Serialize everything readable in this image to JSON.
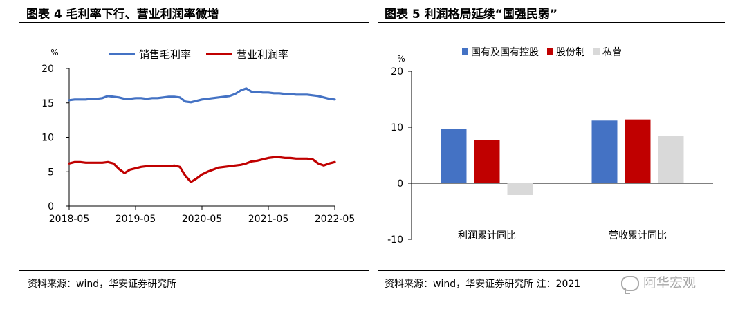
{
  "left_panel": {
    "title": "图表 4 毛利率下行、营业利润率微增",
    "source": "资料来源：wind，华安证券研究所"
  },
  "right_panel": {
    "title": "图表 5 利润格局延续“国强民弱”",
    "source": "资料来源：wind，华安证券研究所 注：2021"
  },
  "watermark": {
    "text": "阿华宏观"
  },
  "chart_data": [
    {
      "type": "line",
      "title": "",
      "unit_label": "%",
      "xlabel": "",
      "ylabel": "",
      "ylim": [
        0,
        20
      ],
      "yticks": [
        0,
        5,
        10,
        15,
        20
      ],
      "x_tick_labels": [
        "2018-05",
        "2019-05",
        "2020-05",
        "2021-05",
        "2022-05"
      ],
      "x_range_months": [
        0,
        48
      ],
      "legend_position": "top",
      "series": [
        {
          "name": "销售毛利率",
          "color": "#4472C4",
          "points": [
            [
              0,
              15.4
            ],
            [
              1,
              15.5
            ],
            [
              2,
              15.5
            ],
            [
              3,
              15.5
            ],
            [
              4,
              15.6
            ],
            [
              5,
              15.6
            ],
            [
              6,
              15.7
            ],
            [
              7,
              16.0
            ],
            [
              8,
              15.9
            ],
            [
              9,
              15.8
            ],
            [
              10,
              15.6
            ],
            [
              11,
              15.6
            ],
            [
              12,
              15.7
            ],
            [
              13,
              15.7
            ],
            [
              14,
              15.6
            ],
            [
              15,
              15.7
            ],
            [
              16,
              15.7
            ],
            [
              17,
              15.8
            ],
            [
              18,
              15.9
            ],
            [
              19,
              15.9
            ],
            [
              20,
              15.8
            ],
            [
              21,
              15.2
            ],
            [
              22,
              15.1
            ],
            [
              23,
              15.3
            ],
            [
              24,
              15.5
            ],
            [
              25,
              15.6
            ],
            [
              26,
              15.7
            ],
            [
              27,
              15.8
            ],
            [
              28,
              15.9
            ],
            [
              29,
              16.0
            ],
            [
              30,
              16.3
            ],
            [
              31,
              16.8
            ],
            [
              32,
              17.1
            ],
            [
              33,
              16.6
            ],
            [
              34,
              16.6
            ],
            [
              35,
              16.5
            ],
            [
              36,
              16.5
            ],
            [
              37,
              16.4
            ],
            [
              38,
              16.4
            ],
            [
              39,
              16.3
            ],
            [
              40,
              16.3
            ],
            [
              41,
              16.2
            ],
            [
              42,
              16.2
            ],
            [
              43,
              16.2
            ],
            [
              44,
              16.1
            ],
            [
              45,
              16.0
            ],
            [
              46,
              15.8
            ],
            [
              47,
              15.6
            ],
            [
              48,
              15.5
            ]
          ]
        },
        {
          "name": "营业利润率",
          "color": "#C00000",
          "points": [
            [
              0,
              6.2
            ],
            [
              1,
              6.4
            ],
            [
              2,
              6.4
            ],
            [
              3,
              6.3
            ],
            [
              4,
              6.3
            ],
            [
              5,
              6.3
            ],
            [
              6,
              6.3
            ],
            [
              7,
              6.4
            ],
            [
              8,
              6.2
            ],
            [
              9,
              5.4
            ],
            [
              10,
              4.8
            ],
            [
              11,
              5.3
            ],
            [
              12,
              5.5
            ],
            [
              13,
              5.7
            ],
            [
              14,
              5.8
            ],
            [
              15,
              5.8
            ],
            [
              16,
              5.8
            ],
            [
              17,
              5.8
            ],
            [
              18,
              5.8
            ],
            [
              19,
              5.9
            ],
            [
              20,
              5.7
            ],
            [
              21,
              4.4
            ],
            [
              22,
              3.5
            ],
            [
              23,
              4.0
            ],
            [
              24,
              4.6
            ],
            [
              25,
              5.0
            ],
            [
              26,
              5.3
            ],
            [
              27,
              5.6
            ],
            [
              28,
              5.7
            ],
            [
              29,
              5.8
            ],
            [
              30,
              5.9
            ],
            [
              31,
              6.0
            ],
            [
              32,
              6.2
            ],
            [
              33,
              6.5
            ],
            [
              34,
              6.6
            ],
            [
              35,
              6.8
            ],
            [
              36,
              7.0
            ],
            [
              37,
              7.1
            ],
            [
              38,
              7.1
            ],
            [
              39,
              7.0
            ],
            [
              40,
              7.0
            ],
            [
              41,
              6.9
            ],
            [
              42,
              6.9
            ],
            [
              43,
              6.9
            ],
            [
              44,
              6.8
            ],
            [
              45,
              6.2
            ],
            [
              46,
              5.9
            ],
            [
              47,
              6.2
            ],
            [
              48,
              6.4
            ]
          ]
        }
      ]
    },
    {
      "type": "bar",
      "title": "",
      "unit_label": "%",
      "xlabel": "",
      "ylabel": "",
      "ylim": [
        -10,
        20
      ],
      "yticks": [
        -10,
        0,
        10,
        20
      ],
      "categories": [
        "利润累计同比",
        "营收累计同比"
      ],
      "legend_position": "top",
      "series": [
        {
          "name": "国有及国有控股",
          "color": "#4472C4",
          "values": [
            9.7,
            11.2
          ]
        },
        {
          "name": "股份制",
          "color": "#C00000",
          "values": [
            7.7,
            11.4
          ]
        },
        {
          "name": "私营",
          "color": "#D9D9D9",
          "values": [
            -2.1,
            8.5
          ]
        }
      ]
    }
  ]
}
